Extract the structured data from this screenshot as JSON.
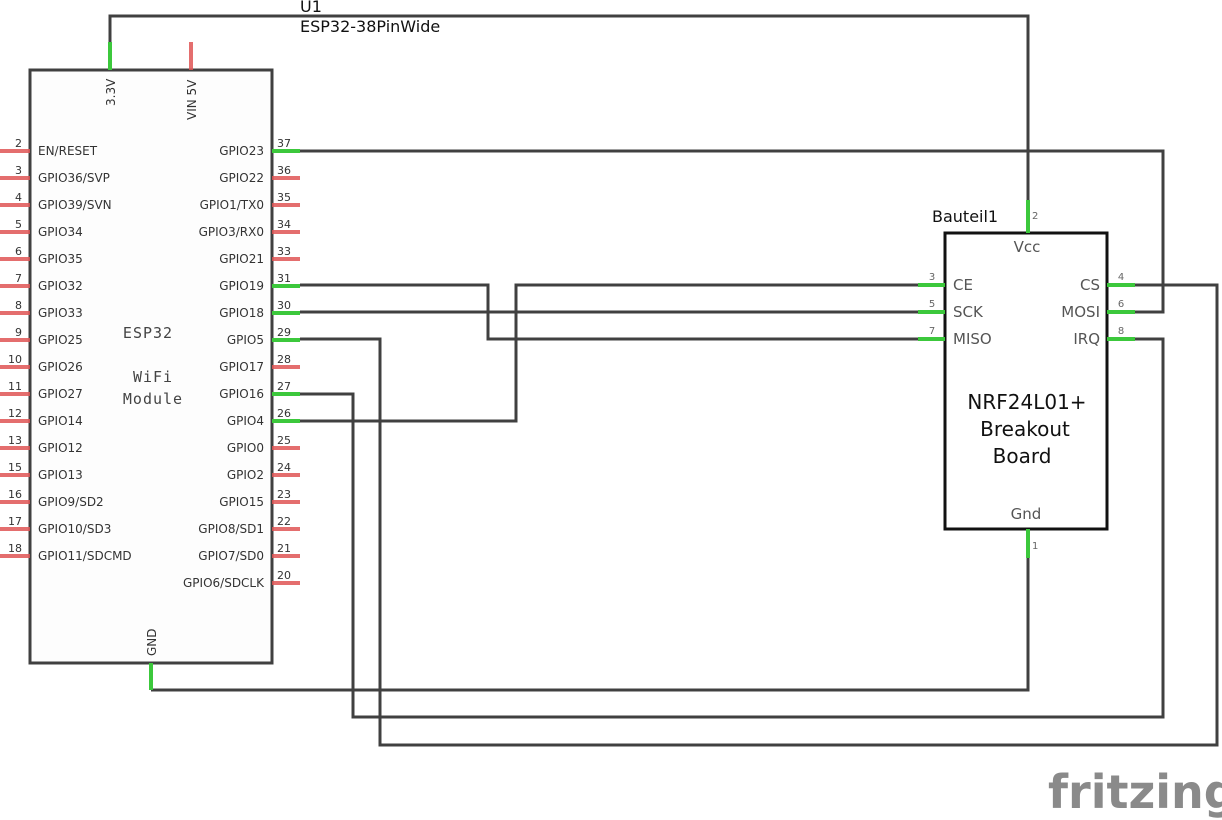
{
  "esp32": {
    "ref": "U1",
    "part": "ESP32-38PinWide",
    "body_lines": [
      "ESP32",
      "WiFi",
      "Module"
    ],
    "top_pins": [
      {
        "name": "3.3V",
        "connected": true
      },
      {
        "name": "VIN 5V",
        "connected": false
      }
    ],
    "bottom_pin": {
      "name": "GND",
      "connected": true
    },
    "left_pins": [
      {
        "num": "2",
        "name": "EN/RESET"
      },
      {
        "num": "3",
        "name": "GPIO36/SVP"
      },
      {
        "num": "4",
        "name": "GPIO39/SVN"
      },
      {
        "num": "5",
        "name": "GPIO34"
      },
      {
        "num": "6",
        "name": "GPIO35"
      },
      {
        "num": "7",
        "name": "GPIO32"
      },
      {
        "num": "8",
        "name": "GPIO33"
      },
      {
        "num": "9",
        "name": "GPIO25"
      },
      {
        "num": "10",
        "name": "GPIO26"
      },
      {
        "num": "11",
        "name": "GPIO27"
      },
      {
        "num": "12",
        "name": "GPIO14"
      },
      {
        "num": "13",
        "name": "GPIO12"
      },
      {
        "num": "15",
        "name": "GPIO13"
      },
      {
        "num": "16",
        "name": "GPIO9/SD2"
      },
      {
        "num": "17",
        "name": "GPIO10/SD3"
      },
      {
        "num": "18",
        "name": "GPIO11/SDCMD"
      }
    ],
    "right_pins": [
      {
        "num": "37",
        "name": "GPIO23",
        "connected": true
      },
      {
        "num": "36",
        "name": "GPIO22",
        "connected": false
      },
      {
        "num": "35",
        "name": "GPIO1/TX0",
        "connected": false
      },
      {
        "num": "34",
        "name": "GPIO3/RX0",
        "connected": false
      },
      {
        "num": "33",
        "name": "GPIO21",
        "connected": false
      },
      {
        "num": "31",
        "name": "GPIO19",
        "connected": true
      },
      {
        "num": "30",
        "name": "GPIO18",
        "connected": true
      },
      {
        "num": "29",
        "name": "GPIO5",
        "connected": true
      },
      {
        "num": "28",
        "name": "GPIO17",
        "connected": false
      },
      {
        "num": "27",
        "name": "GPIO16",
        "connected": true
      },
      {
        "num": "26",
        "name": "GPIO4",
        "connected": true
      },
      {
        "num": "25",
        "name": "GPIO0",
        "connected": false
      },
      {
        "num": "24",
        "name": "GPIO2",
        "connected": false
      },
      {
        "num": "23",
        "name": "GPIO15",
        "connected": false
      },
      {
        "num": "22",
        "name": "GPIO8/SD1",
        "connected": false
      },
      {
        "num": "21",
        "name": "GPIO7/SD0",
        "connected": false
      },
      {
        "num": "20",
        "name": "GPIO6/SDCLK",
        "connected": false
      }
    ]
  },
  "nrf": {
    "ref": "Bauteil1",
    "body_lines": [
      "NRF24L01+",
      "Breakout",
      "Board"
    ],
    "vcc": {
      "num": "2",
      "name": "Vcc"
    },
    "gnd": {
      "num": "1",
      "name": "Gnd"
    },
    "left_pins": [
      {
        "num": "3",
        "name": "CE"
      },
      {
        "num": "5",
        "name": "SCK"
      },
      {
        "num": "7",
        "name": "MISO"
      }
    ],
    "right_pins": [
      {
        "num": "4",
        "name": "CS"
      },
      {
        "num": "6",
        "name": "MOSI"
      },
      {
        "num": "8",
        "name": "IRQ"
      }
    ]
  },
  "colors": {
    "wire": "#404040",
    "pin_connected": "#3cc83c",
    "pin_unconnected": "#e05555"
  },
  "logo": "fritzing"
}
